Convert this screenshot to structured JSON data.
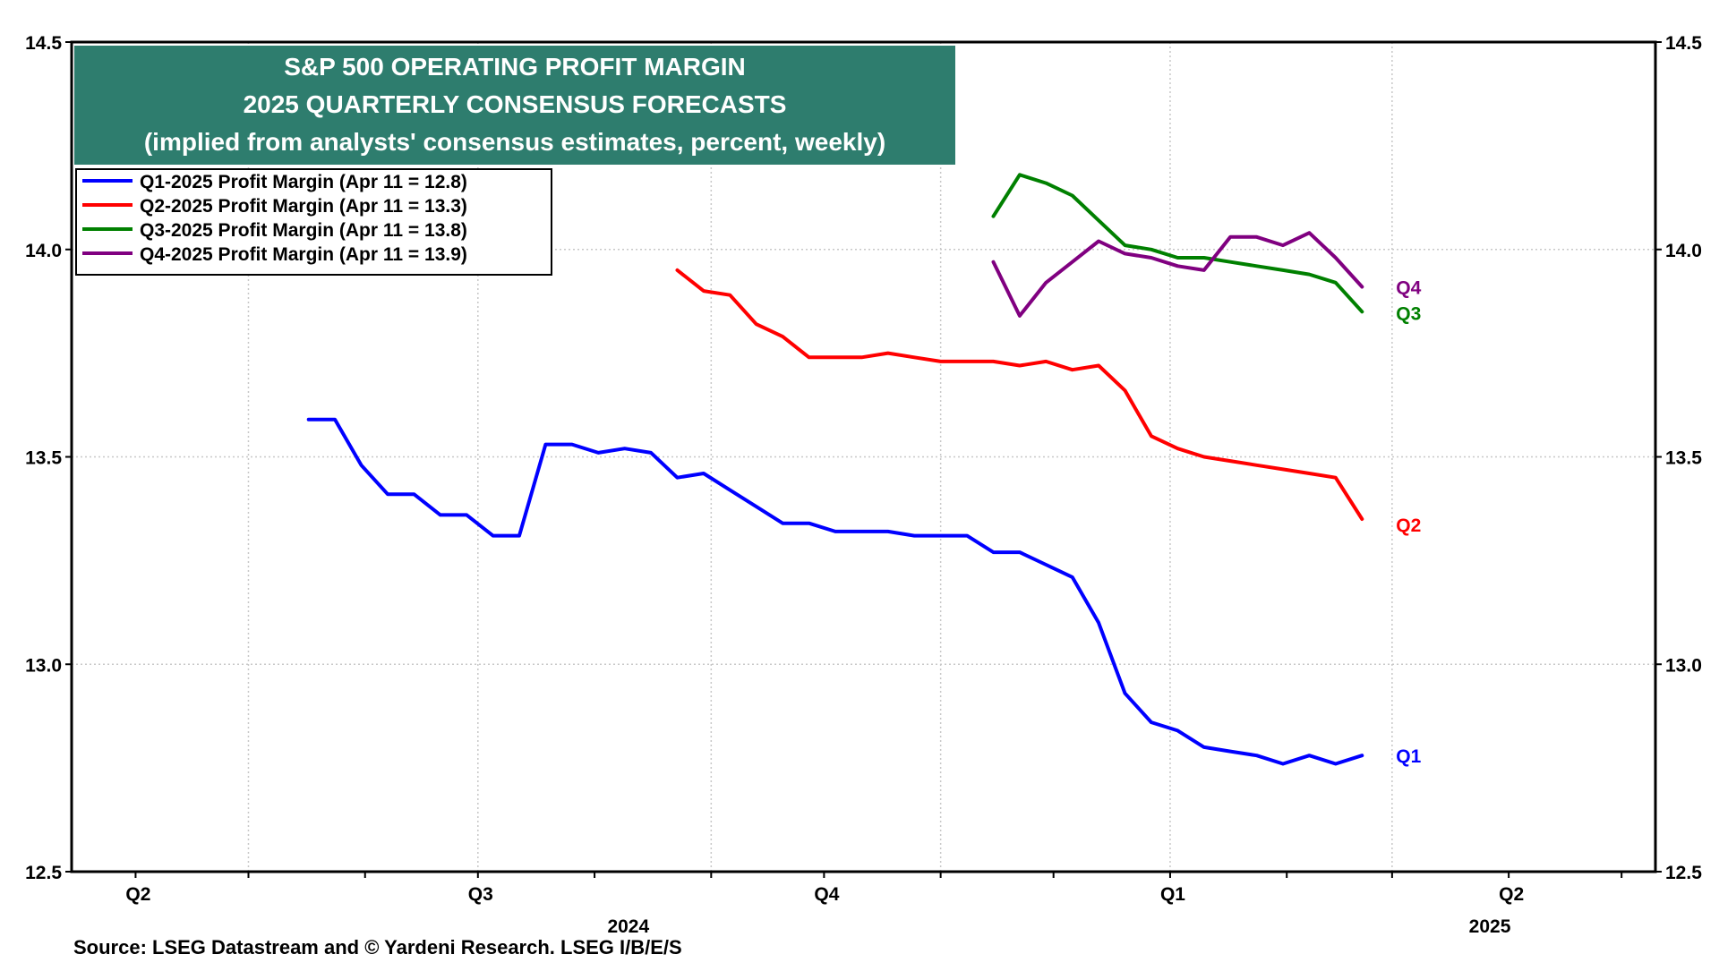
{
  "chart_data": {
    "type": "line",
    "title_lines": [
      "S&P 500 OPERATING PROFIT MARGIN",
      "2025 QUARTERLY CONSENSUS FORECASTS",
      "(implied from analysts' consensus estimates, percent, weekly)"
    ],
    "source": "Source: LSEG Datastream and © Yardeni Research. LSEG I/B/E/S",
    "ylim": [
      12.5,
      14.5
    ],
    "y_ticks": [
      "12.5",
      "13.0",
      "13.5",
      "14.0",
      "14.5"
    ],
    "y_tick_values": [
      12.5,
      13.0,
      13.5,
      14.0,
      14.5
    ],
    "x_range": [
      "2024-03-15",
      "2025-05-10"
    ],
    "quarter_labels": [
      {
        "date": "2024-04-01",
        "text": "Q2"
      },
      {
        "date": "2024-07-01",
        "text": "Q3"
      },
      {
        "date": "2024-10-01",
        "text": "Q4"
      },
      {
        "date": "2025-01-01",
        "text": "Q1"
      },
      {
        "date": "2025-04-01",
        "text": "Q2"
      }
    ],
    "year_labels": [
      {
        "date": "2024-07-01",
        "text": "2024"
      },
      {
        "date": "2025-02-15",
        "text": "2025"
      }
    ],
    "grid": true,
    "legend_position": "top-left",
    "series": [
      {
        "name": "Q1-2025 Profit Margin (Apr 11 = 12.8)",
        "end_label": "Q1",
        "color": "#0000ff",
        "points": [
          [
            "2024-05-17",
            13.59
          ],
          [
            "2024-05-24",
            13.59
          ],
          [
            "2024-05-31",
            13.48
          ],
          [
            "2024-06-07",
            13.41
          ],
          [
            "2024-06-14",
            13.41
          ],
          [
            "2024-06-21",
            13.36
          ],
          [
            "2024-06-28",
            13.36
          ],
          [
            "2024-07-05",
            13.31
          ],
          [
            "2024-07-12",
            13.31
          ],
          [
            "2024-07-19",
            13.53
          ],
          [
            "2024-07-26",
            13.53
          ],
          [
            "2024-08-02",
            13.51
          ],
          [
            "2024-08-09",
            13.52
          ],
          [
            "2024-08-16",
            13.51
          ],
          [
            "2024-08-23",
            13.45
          ],
          [
            "2024-08-30",
            13.46
          ],
          [
            "2024-09-06",
            13.42
          ],
          [
            "2024-09-13",
            13.38
          ],
          [
            "2024-09-20",
            13.34
          ],
          [
            "2024-09-27",
            13.34
          ],
          [
            "2024-10-04",
            13.32
          ],
          [
            "2024-10-11",
            13.32
          ],
          [
            "2024-10-18",
            13.32
          ],
          [
            "2024-10-25",
            13.31
          ],
          [
            "2024-11-01",
            13.31
          ],
          [
            "2024-11-08",
            13.31
          ],
          [
            "2024-11-15",
            13.27
          ],
          [
            "2024-11-22",
            13.27
          ],
          [
            "2024-11-29",
            13.24
          ],
          [
            "2024-12-06",
            13.21
          ],
          [
            "2024-12-13",
            13.1
          ],
          [
            "2024-12-20",
            12.93
          ],
          [
            "2024-12-27",
            12.86
          ],
          [
            "2025-01-03",
            12.84
          ],
          [
            "2025-01-10",
            12.8
          ],
          [
            "2025-01-17",
            12.79
          ],
          [
            "2025-01-24",
            12.78
          ],
          [
            "2025-01-31",
            12.76
          ],
          [
            "2025-02-07",
            12.78
          ],
          [
            "2025-02-14",
            12.76
          ],
          [
            "2025-02-21",
            12.78
          ]
        ]
      },
      {
        "name": "Q2-2025 Profit Margin (Apr 11 = 13.3)",
        "end_label": "Q2",
        "color": "#ff0000",
        "points": [
          [
            "2024-08-23",
            13.95
          ],
          [
            "2024-08-30",
            13.9
          ],
          [
            "2024-09-06",
            13.89
          ],
          [
            "2024-09-13",
            13.82
          ],
          [
            "2024-09-20",
            13.79
          ],
          [
            "2024-09-27",
            13.74
          ],
          [
            "2024-10-04",
            13.74
          ],
          [
            "2024-10-11",
            13.74
          ],
          [
            "2024-10-18",
            13.75
          ],
          [
            "2024-10-25",
            13.74
          ],
          [
            "2024-11-01",
            13.73
          ],
          [
            "2024-11-08",
            13.73
          ],
          [
            "2024-11-15",
            13.73
          ],
          [
            "2024-11-22",
            13.72
          ],
          [
            "2024-11-29",
            13.73
          ],
          [
            "2024-12-06",
            13.71
          ],
          [
            "2024-12-13",
            13.72
          ],
          [
            "2024-12-20",
            13.66
          ],
          [
            "2024-12-27",
            13.55
          ],
          [
            "2025-01-03",
            13.52
          ],
          [
            "2025-01-10",
            13.5
          ],
          [
            "2025-01-17",
            13.49
          ],
          [
            "2025-01-24",
            13.48
          ],
          [
            "2025-01-31",
            13.47
          ],
          [
            "2025-02-07",
            13.46
          ],
          [
            "2025-02-14",
            13.45
          ],
          [
            "2025-02-21",
            13.35
          ]
        ]
      },
      {
        "name": "Q3-2025 Profit Margin (Apr 11 = 13.8)",
        "end_label": "Q3",
        "color": "#008000",
        "points": [
          [
            "2024-11-15",
            14.08
          ],
          [
            "2024-11-22",
            14.18
          ],
          [
            "2024-11-29",
            14.16
          ],
          [
            "2024-12-06",
            14.13
          ],
          [
            "2024-12-13",
            14.07
          ],
          [
            "2024-12-20",
            14.01
          ],
          [
            "2024-12-27",
            14.0
          ],
          [
            "2025-01-03",
            13.98
          ],
          [
            "2025-01-10",
            13.98
          ],
          [
            "2025-01-17",
            13.97
          ],
          [
            "2025-01-24",
            13.96
          ],
          [
            "2025-01-31",
            13.95
          ],
          [
            "2025-02-07",
            13.94
          ],
          [
            "2025-02-14",
            13.92
          ],
          [
            "2025-02-21",
            13.85
          ]
        ]
      },
      {
        "name": "Q4-2025 Profit Margin (Apr 11 = 13.9)",
        "end_label": "Q4",
        "color": "#800080",
        "points": [
          [
            "2024-11-15",
            13.97
          ],
          [
            "2024-11-22",
            13.84
          ],
          [
            "2024-11-29",
            13.92
          ],
          [
            "2024-12-06",
            13.97
          ],
          [
            "2024-12-13",
            14.02
          ],
          [
            "2024-12-20",
            13.99
          ],
          [
            "2024-12-27",
            13.98
          ],
          [
            "2025-01-03",
            13.96
          ],
          [
            "2025-01-10",
            13.95
          ],
          [
            "2025-01-17",
            14.03
          ],
          [
            "2025-01-24",
            14.03
          ],
          [
            "2025-01-31",
            14.01
          ],
          [
            "2025-02-07",
            14.04
          ],
          [
            "2025-02-14",
            13.98
          ],
          [
            "2025-02-21",
            13.91
          ]
        ]
      }
    ]
  },
  "colors": {
    "title_background": "#2e7d6e",
    "title_text": "#ffffff",
    "grid": "#c8c8c8",
    "frame": "#000000"
  }
}
